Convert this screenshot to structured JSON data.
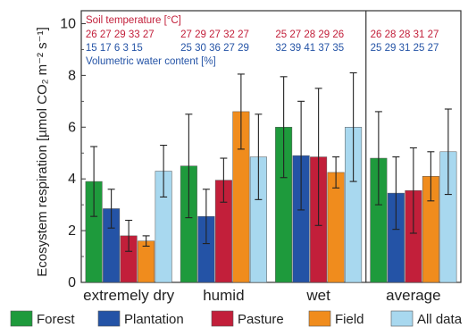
{
  "chart_data": {
    "type": "bar",
    "title": "",
    "ylabel": "Ecosystem respiration [µmol CO₂ m⁻² s⁻¹]",
    "xlabel": "",
    "ylim": [
      0,
      10.5
    ],
    "yticks": [
      "0",
      "2",
      "4",
      "6",
      "8",
      "10"
    ],
    "categories": [
      "extremely dry",
      "humid",
      "wet",
      "average"
    ],
    "series": [
      {
        "name": "Forest",
        "color": "#1e9a3c",
        "values": [
          3.9,
          4.5,
          6.0,
          4.8
        ],
        "errors": [
          1.35,
          2.0,
          1.95,
          1.8
        ]
      },
      {
        "name": "Plantation",
        "color": "#2453a6",
        "values": [
          2.85,
          2.55,
          4.9,
          3.45
        ],
        "errors": [
          0.75,
          1.05,
          2.1,
          1.4
        ]
      },
      {
        "name": "Pasture",
        "color": "#c21f3a",
        "values": [
          1.8,
          3.95,
          4.85,
          3.55
        ],
        "errors": [
          0.6,
          0.85,
          2.65,
          1.65
        ]
      },
      {
        "name": "Field",
        "color": "#f08c1d",
        "values": [
          1.6,
          6.6,
          4.25,
          4.1
        ],
        "errors": [
          0.2,
          1.45,
          0.6,
          0.95
        ]
      },
      {
        "name": "All data",
        "color": "#a8d8ef",
        "values": [
          4.3,
          4.85,
          6.0,
          5.05
        ],
        "errors": [
          1.0,
          1.65,
          2.1,
          1.65
        ]
      }
    ],
    "grid": false,
    "legend_position": "bottom",
    "separator_after_category": 3,
    "annotations": {
      "soil_temperature_label": "Soil temperature [°C]",
      "soil_temperature": [
        "26 27 29 33 27",
        "27 29 27 32 27",
        "25 27 28 29 26",
        "26 28 28 31 27"
      ],
      "water_content_label": "Volumetric water content [%]",
      "water_content": [
        "15 17  6  3  15",
        "25 30 36 27 29",
        "32 39 41 37 35",
        "25 29 31 25 27"
      ]
    }
  }
}
